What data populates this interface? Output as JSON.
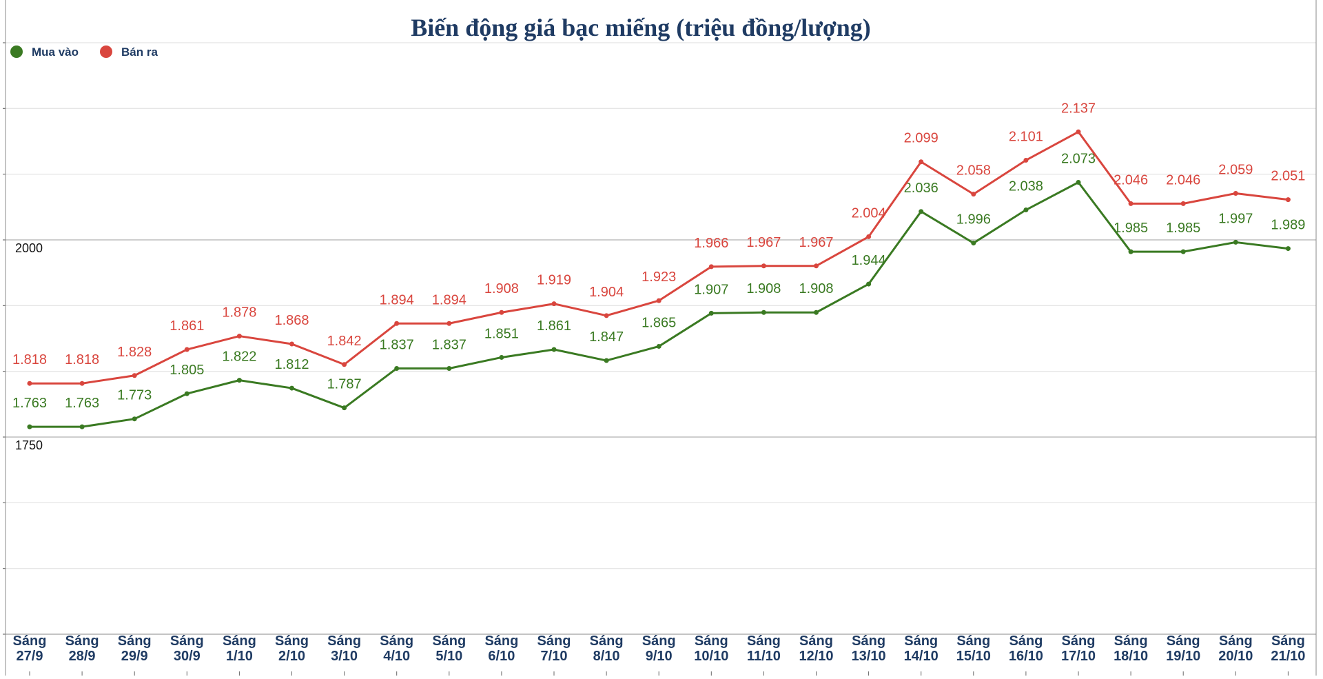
{
  "chart_data": {
    "type": "line",
    "title": "Biến động giá bạc miếng (triệu đồng/lượng)",
    "categories": [
      [
        "Sáng",
        "27/9"
      ],
      [
        "Sáng",
        "28/9"
      ],
      [
        "Sáng",
        "29/9"
      ],
      [
        "Sáng",
        "30/9"
      ],
      [
        "Sáng",
        "1/10"
      ],
      [
        "Sáng",
        "2/10"
      ],
      [
        "Sáng",
        "3/10"
      ],
      [
        "Sáng",
        "4/10"
      ],
      [
        "Sáng",
        "5/10"
      ],
      [
        "Sáng",
        "6/10"
      ],
      [
        "Sáng",
        "7/10"
      ],
      [
        "Sáng",
        "8/10"
      ],
      [
        "Sáng",
        "9/10"
      ],
      [
        "Sáng",
        "10/10"
      ],
      [
        "Sáng",
        "11/10"
      ],
      [
        "Sáng",
        "12/10"
      ],
      [
        "Sáng",
        "13/10"
      ],
      [
        "Sáng",
        "14/10"
      ],
      [
        "Sáng",
        "15/10"
      ],
      [
        "Sáng",
        "16/10"
      ],
      [
        "Sáng",
        "17/10"
      ],
      [
        "Sáng",
        "18/10"
      ],
      [
        "Sáng",
        "19/10"
      ],
      [
        "Sáng",
        "20/10"
      ],
      [
        "Sáng",
        "21/10"
      ]
    ],
    "series": [
      {
        "name": "Mua vào",
        "color": "#3a7a22",
        "values": [
          1763,
          1763,
          1773,
          1805,
          1822,
          1812,
          1787,
          1837,
          1837,
          1851,
          1861,
          1847,
          1865,
          1907,
          1908,
          1908,
          1944,
          2036,
          1996,
          2038,
          2073,
          1985,
          1985,
          1997,
          1989
        ],
        "labels": [
          "1.763",
          "1.763",
          "1.773",
          "1.805",
          "1.822",
          "1.812",
          "1.787",
          "1.837",
          "1.837",
          "1.851",
          "1.861",
          "1.847",
          "1.865",
          "1.907",
          "1.908",
          "1.908",
          "1.944",
          "2.036",
          "1.996",
          "2.038",
          "2.073",
          "1.985",
          "1.985",
          "1.997",
          "1.989"
        ]
      },
      {
        "name": "Bán ra",
        "color": "#d9463e",
        "values": [
          1818,
          1818,
          1828,
          1861,
          1878,
          1868,
          1842,
          1894,
          1894,
          1908,
          1919,
          1904,
          1923,
          1966,
          1967,
          1967,
          2004,
          2099,
          2058,
          2101,
          2137,
          2046,
          2046,
          2059,
          2051
        ],
        "labels": [
          "1.818",
          "1.818",
          "1.828",
          "1.861",
          "1.878",
          "1.868",
          "1.842",
          "1.894",
          "1.894",
          "1.908",
          "1.919",
          "1.904",
          "1.923",
          "1.966",
          "1.967",
          "1.967",
          "2.004",
          "2.099",
          "2.058",
          "2.101",
          "2.137",
          "2.046",
          "2.046",
          "2.059",
          "2.051"
        ]
      }
    ],
    "yticks": [
      {
        "value": 2000,
        "label": "2000"
      },
      {
        "value": 1750,
        "label": "1750"
      }
    ],
    "gridlines": [
      1500,
      1583.3,
      1666.7,
      1750,
      1833.3,
      1916.7,
      2000,
      2083.3,
      2166.7,
      2250
    ],
    "ylim": [
      1500,
      2250
    ],
    "grid": true,
    "legend_position": "top-left",
    "xlabel": "",
    "ylabel": ""
  }
}
